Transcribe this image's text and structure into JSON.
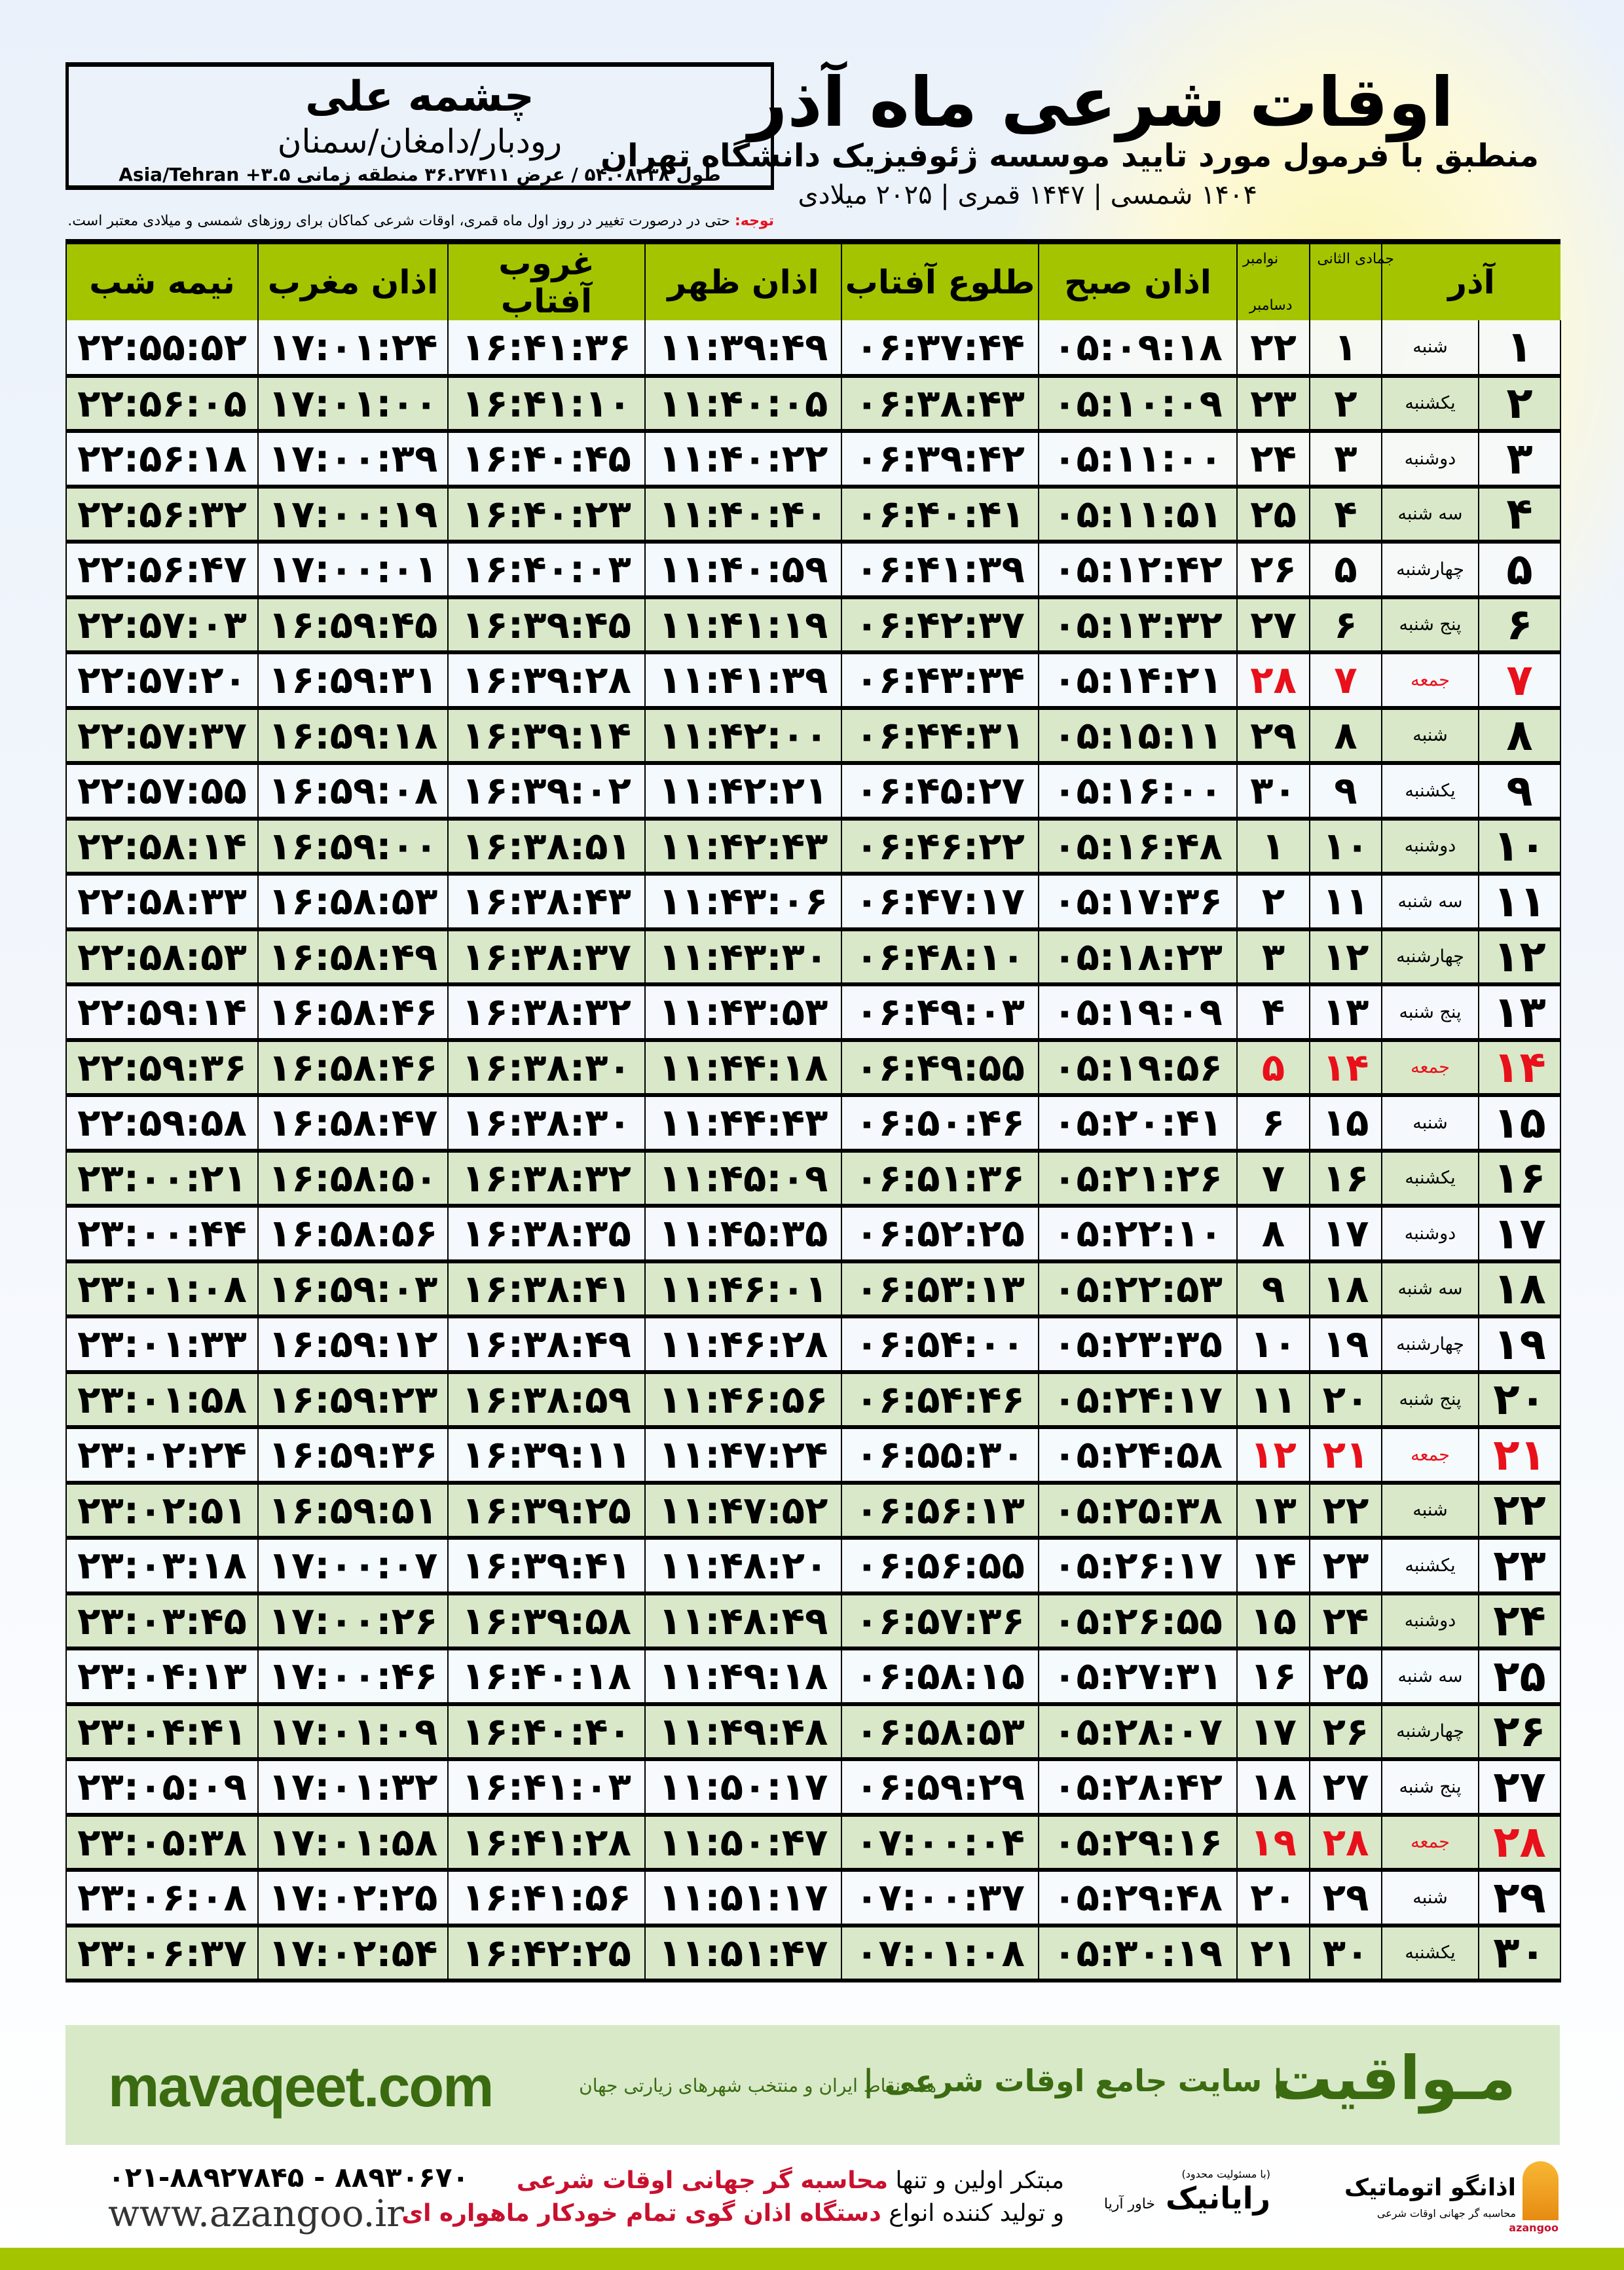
{
  "location": {
    "name": "چشمه علی",
    "region": "رودبار/دامغان/سمنان",
    "coords": "طول ۵۴.۰۸۲۳۸ / عرض ۳۶.۲۷۴۱۱ منطقه زمانی ۳.۵+ Asia/Tehran"
  },
  "header": {
    "title": "اوقات شرعی ماه آذر",
    "subtitle": "منطبق با فرمول مورد تایید موسسه ژئوفیزیک دانشگاه تهران",
    "dates": "۱۴۰۴ شمسی | ۱۴۴۷ قمری | ۲۰۲۵ میلادی",
    "note_label": "توجه:",
    "note_text": " حتی در درصورت تغییر در روز اول ماه قمری، اوقات شرعی کماکان برای روزهای شمسی و میلادی معتبر است."
  },
  "table": {
    "columns": {
      "month": "آذر",
      "hijri": "جمادی الثانی",
      "greg1": "نوامبر",
      "greg2": "دسامبر",
      "sobh": "اذان صبح",
      "tolu": "طلوع آفتاب",
      "zohr": "اذان ظهر",
      "ghorub": "غروب آفتاب",
      "maghreb": "اذان مغرب",
      "nimeshab": "نیمه شب"
    },
    "holiday_color": "#e8101a",
    "rows": [
      [
        "۱",
        "شنبه",
        "۱",
        "۲۲",
        "۰۵:۰۹:۱۸",
        "۰۶:۳۷:۴۴",
        "۱۱:۳۹:۴۹",
        "۱۶:۴۱:۳۶",
        "۱۷:۰۱:۲۴",
        "۲۲:۵۵:۵۲",
        false
      ],
      [
        "۲",
        "یکشنبه",
        "۲",
        "۲۳",
        "۰۵:۱۰:۰۹",
        "۰۶:۳۸:۴۳",
        "۱۱:۴۰:۰۵",
        "۱۶:۴۱:۱۰",
        "۱۷:۰۱:۰۰",
        "۲۲:۵۶:۰۵",
        false
      ],
      [
        "۳",
        "دوشنبه",
        "۳",
        "۲۴",
        "۰۵:۱۱:۰۰",
        "۰۶:۳۹:۴۲",
        "۱۱:۴۰:۲۲",
        "۱۶:۴۰:۴۵",
        "۱۷:۰۰:۳۹",
        "۲۲:۵۶:۱۸",
        false
      ],
      [
        "۴",
        "سه شنبه",
        "۴",
        "۲۵",
        "۰۵:۱۱:۵۱",
        "۰۶:۴۰:۴۱",
        "۱۱:۴۰:۴۰",
        "۱۶:۴۰:۲۳",
        "۱۷:۰۰:۱۹",
        "۲۲:۵۶:۳۲",
        false
      ],
      [
        "۵",
        "چهارشنبه",
        "۵",
        "۲۶",
        "۰۵:۱۲:۴۲",
        "۰۶:۴۱:۳۹",
        "۱۱:۴۰:۵۹",
        "۱۶:۴۰:۰۳",
        "۱۷:۰۰:۰۱",
        "۲۲:۵۶:۴۷",
        false
      ],
      [
        "۶",
        "پنج شنبه",
        "۶",
        "۲۷",
        "۰۵:۱۳:۳۲",
        "۰۶:۴۲:۳۷",
        "۱۱:۴۱:۱۹",
        "۱۶:۳۹:۴۵",
        "۱۶:۵۹:۴۵",
        "۲۲:۵۷:۰۳",
        false
      ],
      [
        "۷",
        "جمعه",
        "۷",
        "۲۸",
        "۰۵:۱۴:۲۱",
        "۰۶:۴۳:۳۴",
        "۱۱:۴۱:۳۹",
        "۱۶:۳۹:۲۸",
        "۱۶:۵۹:۳۱",
        "۲۲:۵۷:۲۰",
        true
      ],
      [
        "۸",
        "شنبه",
        "۸",
        "۲۹",
        "۰۵:۱۵:۱۱",
        "۰۶:۴۴:۳۱",
        "۱۱:۴۲:۰۰",
        "۱۶:۳۹:۱۴",
        "۱۶:۵۹:۱۸",
        "۲۲:۵۷:۳۷",
        false
      ],
      [
        "۹",
        "یکشنبه",
        "۹",
        "۳۰",
        "۰۵:۱۶:۰۰",
        "۰۶:۴۵:۲۷",
        "۱۱:۴۲:۲۱",
        "۱۶:۳۹:۰۲",
        "۱۶:۵۹:۰۸",
        "۲۲:۵۷:۵۵",
        false
      ],
      [
        "۱۰",
        "دوشنبه",
        "۱۰",
        "۱",
        "۰۵:۱۶:۴۸",
        "۰۶:۴۶:۲۲",
        "۱۱:۴۲:۴۳",
        "۱۶:۳۸:۵۱",
        "۱۶:۵۹:۰۰",
        "۲۲:۵۸:۱۴",
        false
      ],
      [
        "۱۱",
        "سه شنبه",
        "۱۱",
        "۲",
        "۰۵:۱۷:۳۶",
        "۰۶:۴۷:۱۷",
        "۱۱:۴۳:۰۶",
        "۱۶:۳۸:۴۳",
        "۱۶:۵۸:۵۳",
        "۲۲:۵۸:۳۳",
        false
      ],
      [
        "۱۲",
        "چهارشنبه",
        "۱۲",
        "۳",
        "۰۵:۱۸:۲۳",
        "۰۶:۴۸:۱۰",
        "۱۱:۴۳:۳۰",
        "۱۶:۳۸:۳۷",
        "۱۶:۵۸:۴۹",
        "۲۲:۵۸:۵۳",
        false
      ],
      [
        "۱۳",
        "پنج شنبه",
        "۱۳",
        "۴",
        "۰۵:۱۹:۰۹",
        "۰۶:۴۹:۰۳",
        "۱۱:۴۳:۵۳",
        "۱۶:۳۸:۳۲",
        "۱۶:۵۸:۴۶",
        "۲۲:۵۹:۱۴",
        false
      ],
      [
        "۱۴",
        "جمعه",
        "۱۴",
        "۵",
        "۰۵:۱۹:۵۶",
        "۰۶:۴۹:۵۵",
        "۱۱:۴۴:۱۸",
        "۱۶:۳۸:۳۰",
        "۱۶:۵۸:۴۶",
        "۲۲:۵۹:۳۶",
        true
      ],
      [
        "۱۵",
        "شنبه",
        "۱۵",
        "۶",
        "۰۵:۲۰:۴۱",
        "۰۶:۵۰:۴۶",
        "۱۱:۴۴:۴۳",
        "۱۶:۳۸:۳۰",
        "۱۶:۵۸:۴۷",
        "۲۲:۵۹:۵۸",
        false
      ],
      [
        "۱۶",
        "یکشنبه",
        "۱۶",
        "۷",
        "۰۵:۲۱:۲۶",
        "۰۶:۵۱:۳۶",
        "۱۱:۴۵:۰۹",
        "۱۶:۳۸:۳۲",
        "۱۶:۵۸:۵۰",
        "۲۳:۰۰:۲۱",
        false
      ],
      [
        "۱۷",
        "دوشنبه",
        "۱۷",
        "۸",
        "۰۵:۲۲:۱۰",
        "۰۶:۵۲:۲۵",
        "۱۱:۴۵:۳۵",
        "۱۶:۳۸:۳۵",
        "۱۶:۵۸:۵۶",
        "۲۳:۰۰:۴۴",
        false
      ],
      [
        "۱۸",
        "سه شنبه",
        "۱۸",
        "۹",
        "۰۵:۲۲:۵۳",
        "۰۶:۵۳:۱۳",
        "۱۱:۴۶:۰۱",
        "۱۶:۳۸:۴۱",
        "۱۶:۵۹:۰۳",
        "۲۳:۰۱:۰۸",
        false
      ],
      [
        "۱۹",
        "چهارشنبه",
        "۱۹",
        "۱۰",
        "۰۵:۲۳:۳۵",
        "۰۶:۵۴:۰۰",
        "۱۱:۴۶:۲۸",
        "۱۶:۳۸:۴۹",
        "۱۶:۵۹:۱۲",
        "۲۳:۰۱:۳۳",
        false
      ],
      [
        "۲۰",
        "پنج شنبه",
        "۲۰",
        "۱۱",
        "۰۵:۲۴:۱۷",
        "۰۶:۵۴:۴۶",
        "۱۱:۴۶:۵۶",
        "۱۶:۳۸:۵۹",
        "۱۶:۵۹:۲۳",
        "۲۳:۰۱:۵۸",
        false
      ],
      [
        "۲۱",
        "جمعه",
        "۲۱",
        "۱۲",
        "۰۵:۲۴:۵۸",
        "۰۶:۵۵:۳۰",
        "۱۱:۴۷:۲۴",
        "۱۶:۳۹:۱۱",
        "۱۶:۵۹:۳۶",
        "۲۳:۰۲:۲۴",
        true
      ],
      [
        "۲۲",
        "شنبه",
        "۲۲",
        "۱۳",
        "۰۵:۲۵:۳۸",
        "۰۶:۵۶:۱۳",
        "۱۱:۴۷:۵۲",
        "۱۶:۳۹:۲۵",
        "۱۶:۵۹:۵۱",
        "۲۳:۰۲:۵۱",
        false
      ],
      [
        "۲۳",
        "یکشنبه",
        "۲۳",
        "۱۴",
        "۰۵:۲۶:۱۷",
        "۰۶:۵۶:۵۵",
        "۱۱:۴۸:۲۰",
        "۱۶:۳۹:۴۱",
        "۱۷:۰۰:۰۷",
        "۲۳:۰۳:۱۸",
        false
      ],
      [
        "۲۴",
        "دوشنبه",
        "۲۴",
        "۱۵",
        "۰۵:۲۶:۵۵",
        "۰۶:۵۷:۳۶",
        "۱۱:۴۸:۴۹",
        "۱۶:۳۹:۵۸",
        "۱۷:۰۰:۲۶",
        "۲۳:۰۳:۴۵",
        false
      ],
      [
        "۲۵",
        "سه شنبه",
        "۲۵",
        "۱۶",
        "۰۵:۲۷:۳۱",
        "۰۶:۵۸:۱۵",
        "۱۱:۴۹:۱۸",
        "۱۶:۴۰:۱۸",
        "۱۷:۰۰:۴۶",
        "۲۳:۰۴:۱۳",
        false
      ],
      [
        "۲۶",
        "چهارشنبه",
        "۲۶",
        "۱۷",
        "۰۵:۲۸:۰۷",
        "۰۶:۵۸:۵۳",
        "۱۱:۴۹:۴۸",
        "۱۶:۴۰:۴۰",
        "۱۷:۰۱:۰۹",
        "۲۳:۰۴:۴۱",
        false
      ],
      [
        "۲۷",
        "پنج شنبه",
        "۲۷",
        "۱۸",
        "۰۵:۲۸:۴۲",
        "۰۶:۵۹:۲۹",
        "۱۱:۵۰:۱۷",
        "۱۶:۴۱:۰۳",
        "۱۷:۰۱:۳۲",
        "۲۳:۰۵:۰۹",
        false
      ],
      [
        "۲۸",
        "جمعه",
        "۲۸",
        "۱۹",
        "۰۵:۲۹:۱۶",
        "۰۷:۰۰:۰۴",
        "۱۱:۵۰:۴۷",
        "۱۶:۴۱:۲۸",
        "۱۷:۰۱:۵۸",
        "۲۳:۰۵:۳۸",
        true
      ],
      [
        "۲۹",
        "شنبه",
        "۲۹",
        "۲۰",
        "۰۵:۲۹:۴۸",
        "۰۷:۰۰:۳۷",
        "۱۱:۵۱:۱۷",
        "۱۶:۴۱:۵۶",
        "۱۷:۰۲:۲۵",
        "۲۳:۰۶:۰۸",
        false
      ],
      [
        "۳۰",
        "یکشنبه",
        "۳۰",
        "۲۱",
        "۰۵:۳۰:۱۹",
        "۰۷:۰۱:۰۸",
        "۱۱:۵۱:۴۷",
        "۱۶:۴۲:۲۵",
        "۱۷:۰۲:۵۴",
        "۲۳:۰۶:۳۷",
        false
      ]
    ]
  },
  "footer": {
    "site_url": "mavaqeet.com",
    "brand": "مـواقیت",
    "brand_sub": "| سایت جامع اوقات شرعی |",
    "brand_tag": "همه نقاط ایران و منتخب شهرهای زیارتی جهان",
    "phone": "۰۲۱-۸۸۹۲۷۸۴۵ - ۸۸۹۳۰۶۷۰",
    "website": "www.azangoo.ir",
    "promo_line1_a": "مبتکر اولین و تنها ",
    "promo_line1_b": "محاسبه گر جهانی اوقات شرعی",
    "promo_line2_a": "و تولید کننده انواع ",
    "promo_line2_b": "دستگاه اذان گوی تمام خودکار ماهواره ای",
    "logo1_small": "(با مسئولیت محدود)",
    "logo1_name": "رایانیک",
    "logo1_sub": "خاور آریا",
    "logo2_name": "اذانگو اتوماتیک",
    "logo2_tag": "محاسبه گر جهانی اوقات شرعی",
    "logo2_en": "azangoo",
    "accent_green": "#a5c400",
    "brand_green": "#3a6b10"
  }
}
